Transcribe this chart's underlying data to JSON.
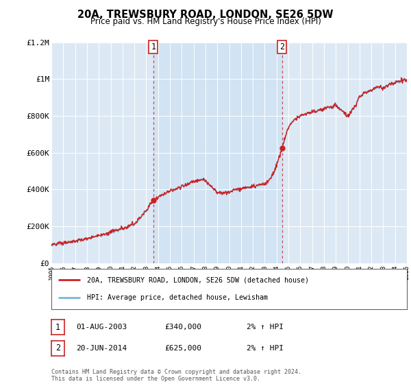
{
  "title": "20A, TREWSBURY ROAD, LONDON, SE26 5DW",
  "subtitle": "Price paid vs. HM Land Registry's House Price Index (HPI)",
  "hpi_label": "HPI: Average price, detached house, Lewisham",
  "property_label": "20A, TREWSBURY ROAD, LONDON, SE26 5DW (detached house)",
  "sale1_date": "01-AUG-2003",
  "sale1_price": "£340,000",
  "sale1_hpi": "2% ↑ HPI",
  "sale2_date": "20-JUN-2014",
  "sale2_price": "£625,000",
  "sale2_hpi": "2% ↑ HPI",
  "xmin": 1995,
  "xmax": 2025,
  "ymin": 0,
  "ymax": 1200000,
  "yticks": [
    0,
    200000,
    400000,
    600000,
    800000,
    1000000,
    1200000
  ],
  "ytick_labels": [
    "£0",
    "£200K",
    "£400K",
    "£600K",
    "£800K",
    "£1M",
    "£1.2M"
  ],
  "hpi_color": "#7ab8d8",
  "property_color": "#cc2222",
  "sale1_x": 2003.6,
  "sale1_y": 340000,
  "sale2_x": 2014.46,
  "sale2_y": 625000,
  "vline1_x": 2003.6,
  "vline2_x": 2014.46,
  "plot_bg_color": "#dce9f5",
  "plot_bg_between": "#cce0f0",
  "copyright_text": "Contains HM Land Registry data © Crown copyright and database right 2024.\nThis data is licensed under the Open Government Licence v3.0."
}
